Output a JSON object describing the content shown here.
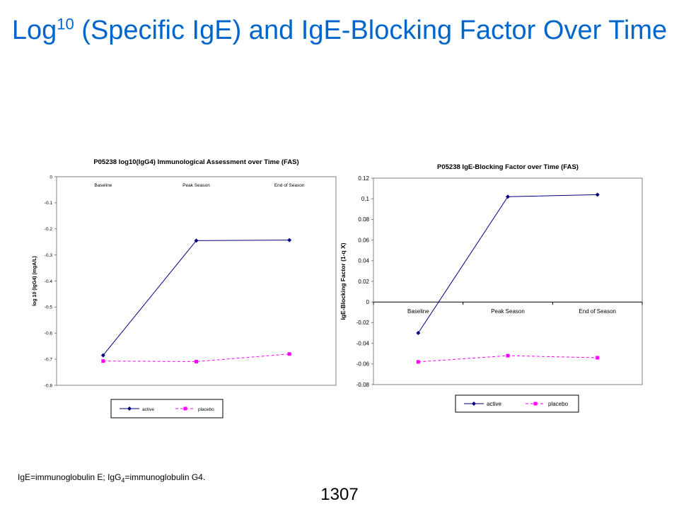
{
  "slide": {
    "title_prefix": "Log",
    "title_superscript": "10",
    "title_rest": " (Specific IgE) and IgE-Blocking Factor Over Time",
    "footnote": {
      "part1": "IgE=immunoglobulin  E; IgG",
      "subscript": "4",
      "part2": "=immunoglobulin  G4."
    },
    "page_number": "1307"
  },
  "colors": {
    "title": "#0066cc",
    "active": "#000080",
    "placebo": "#ff00ff",
    "frame": "#808080"
  },
  "chart_data": [
    {
      "type": "line",
      "title": "P05238 log10(IgG4) Immunological Assessment over Time (FAS)",
      "xlabel": "",
      "ylabel": "log 10 (IgG4) (mgA/L)",
      "categories": [
        "Baseline",
        "Peak Season",
        "End of Season"
      ],
      "ylim": [
        -0.8,
        0
      ],
      "yticks": [
        "0",
        "-0.1",
        "-0.2",
        "-0.3",
        "-0.4",
        "-0.5",
        "-0.6",
        "-0.7",
        "-0.8"
      ],
      "ytick_values": [
        0,
        -0.1,
        -0.2,
        -0.3,
        -0.4,
        -0.5,
        -0.6,
        -0.7,
        -0.8
      ],
      "category_labels_at": "top",
      "grid": false,
      "legend_position": "bottom",
      "series": [
        {
          "name": "active",
          "values": [
            -0.685,
            -0.245,
            -0.243
          ]
        },
        {
          "name": "placebo",
          "values": [
            -0.707,
            -0.709,
            -0.68
          ]
        }
      ]
    },
    {
      "type": "line",
      "title": "P05238 IgE-Blocking Factor over Time (FAS)",
      "xlabel": "",
      "ylabel": "IgE-Blocking Factor (1-q X)",
      "categories": [
        "Baseline",
        "Peak Season",
        "End of Season"
      ],
      "ylim": [
        -0.08,
        0.12
      ],
      "yticks": [
        "0.12",
        "0.1",
        "0.08",
        "0.06",
        "0.04",
        "0.02",
        "0",
        "-0.02",
        "-0.04",
        "-0.06",
        "-0.08"
      ],
      "ytick_values": [
        0.12,
        0.1,
        0.08,
        0.06,
        0.04,
        0.02,
        0,
        -0.02,
        -0.04,
        -0.06,
        -0.08
      ],
      "category_labels_at": "zero-line",
      "grid": false,
      "legend_position": "bottom",
      "series": [
        {
          "name": "active",
          "values": [
            -0.03,
            0.102,
            0.104
          ]
        },
        {
          "name": "placebo",
          "values": [
            -0.058,
            -0.052,
            -0.054
          ]
        }
      ]
    }
  ]
}
